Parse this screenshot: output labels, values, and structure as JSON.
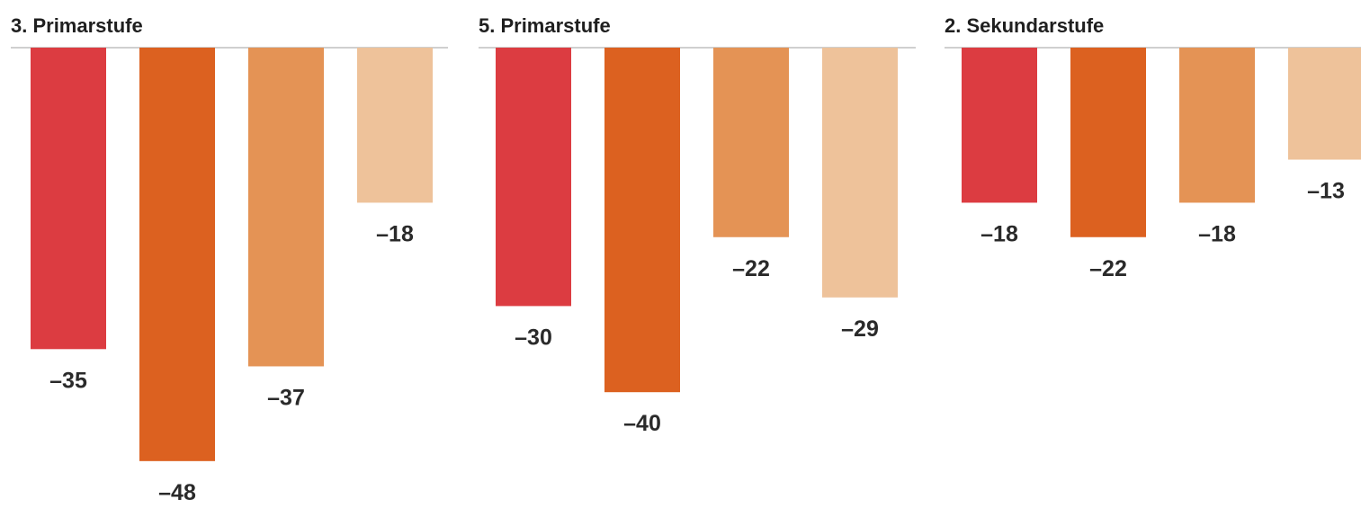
{
  "chart_data": [
    {
      "type": "bar",
      "title": "3. Primarstufe",
      "categories": [
        "",
        "",
        "",
        ""
      ],
      "values": [
        -35,
        -48,
        -37,
        -18
      ],
      "colors": [
        "#dc3c41",
        "#dc6120",
        "#e49355",
        "#eec29a"
      ],
      "ylim": [
        -52,
        0
      ]
    },
    {
      "type": "bar",
      "title": "5. Primarstufe",
      "categories": [
        "",
        "",
        "",
        ""
      ],
      "values": [
        -30,
        -40,
        -22,
        -29
      ],
      "colors": [
        "#dc3c41",
        "#dc6120",
        "#e49355",
        "#eec29a"
      ],
      "ylim": [
        -52,
        0
      ]
    },
    {
      "type": "bar",
      "title": "2. Sekundarstufe",
      "categories": [
        "",
        "",
        "",
        ""
      ],
      "values": [
        -18,
        -22,
        -18,
        -13
      ],
      "colors": [
        "#dc3c41",
        "#dc6120",
        "#e49355",
        "#eec29a"
      ],
      "ylim": [
        -52,
        0
      ]
    }
  ]
}
